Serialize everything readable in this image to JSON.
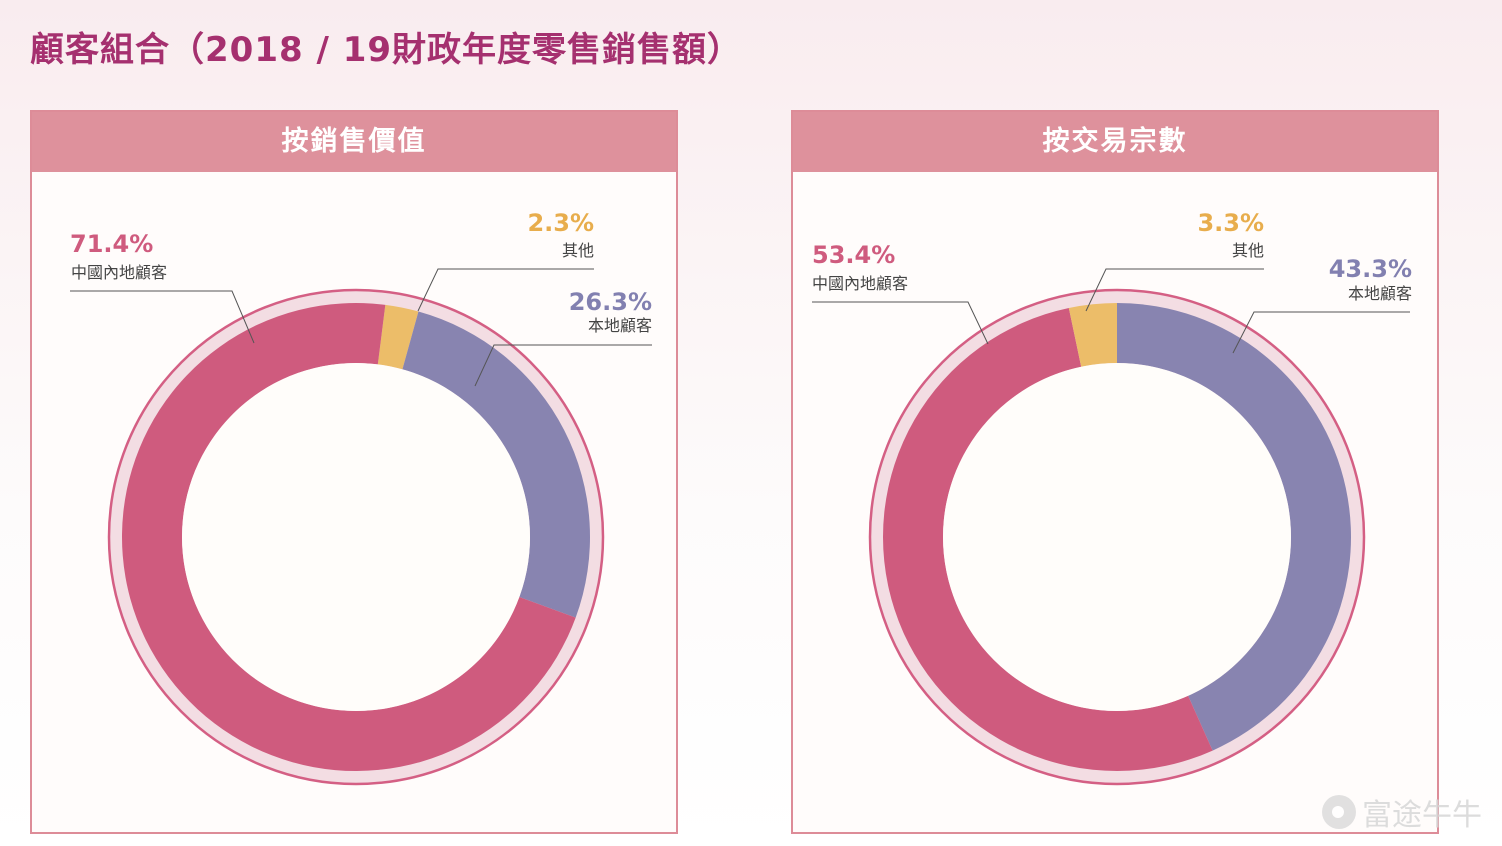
{
  "page": {
    "title": "顧客組合（2018 / 19財政年度零售銷售額）",
    "watermark": "富途牛牛"
  },
  "colors": {
    "mainland": "#cf5b7e",
    "local": "#8884b0",
    "other": "#ecbd69",
    "ring_outer": "#d45f84",
    "ring_fill": "#f3dde3",
    "hole": "#fffdfa",
    "title": "#a5306f",
    "header_bg": "#de919c"
  },
  "chart_data": [
    {
      "type": "pie",
      "subtype": "donut",
      "title": "按銷售價值",
      "categories": [
        "中國內地顧客",
        "其他",
        "本地顧客"
      ],
      "values": [
        71.4,
        2.3,
        26.3
      ],
      "labels": [
        "71.4%",
        "2.3%",
        "26.3%"
      ],
      "colors": [
        "#cf5b7e",
        "#ecbd69",
        "#8884b0"
      ],
      "legend": "callout labels with leader lines"
    },
    {
      "type": "pie",
      "subtype": "donut",
      "title": "按交易宗數",
      "categories": [
        "中國內地顧客",
        "其他",
        "本地顧客"
      ],
      "values": [
        53.4,
        3.3,
        43.3
      ],
      "labels": [
        "53.4%",
        "3.3%",
        "43.3%"
      ],
      "colors": [
        "#cf5b7e",
        "#ecbd69",
        "#8884b0"
      ],
      "legend": "callout labels with leader lines"
    }
  ],
  "panels": {
    "left": {
      "header": "按銷售價值",
      "mainland": {
        "pct": "71.4%",
        "name": "中國內地顧客"
      },
      "other": {
        "pct": "2.3%",
        "name": "其他"
      },
      "local": {
        "pct": "26.3%",
        "name": "本地顧客"
      }
    },
    "right": {
      "header": "按交易宗數",
      "mainland": {
        "pct": "53.4%",
        "name": "中國內地顧客"
      },
      "other": {
        "pct": "3.3%",
        "name": "其他"
      },
      "local": {
        "pct": "43.3%",
        "name": "本地顧客"
      }
    }
  }
}
